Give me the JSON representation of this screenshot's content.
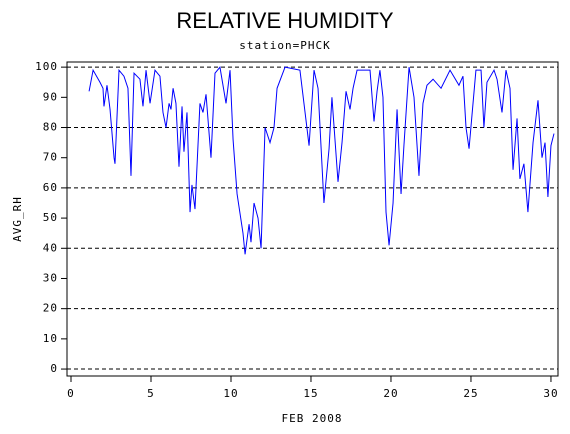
{
  "chart_data": {
    "type": "line",
    "title": "RELATIVE HUMIDITY",
    "subtitle": "station=PHCK",
    "x_label": "FEB 2008",
    "y_label": "AVG_RH",
    "color": "#0000ff",
    "xlim": [
      -0.25,
      30.44
    ],
    "ylim": [
      -2.3,
      101.7
    ],
    "xticks": [
      0,
      5,
      10,
      15,
      20,
      25,
      30
    ],
    "yticks": [
      0,
      10,
      20,
      30,
      40,
      50,
      60,
      70,
      80,
      90,
      100
    ],
    "ygrid": [
      0,
      20,
      40,
      60,
      80,
      100
    ],
    "grid_style": "dashed",
    "x": [
      1.13,
      1.38,
      1.81,
      2.0,
      2.06,
      2.25,
      2.44,
      2.69,
      2.75,
      3.0,
      3.31,
      3.56,
      3.75,
      3.94,
      4.31,
      4.5,
      4.69,
      4.94,
      5.25,
      5.56,
      5.75,
      5.94,
      6.13,
      6.25,
      6.38,
      6.56,
      6.75,
      6.94,
      7.06,
      7.25,
      7.44,
      7.56,
      7.75,
      8.06,
      8.25,
      8.44,
      8.75,
      9.0,
      9.31,
      9.69,
      9.94,
      10.13,
      10.38,
      10.75,
      10.88,
      11.13,
      11.25,
      11.44,
      11.69,
      11.88,
      12.13,
      12.44,
      12.69,
      12.88,
      13.38,
      14.31,
      14.63,
      14.88,
      15.19,
      15.44,
      15.81,
      16.13,
      16.31,
      16.69,
      16.94,
      17.19,
      17.44,
      17.63,
      17.88,
      18.69,
      18.94,
      19.13,
      19.31,
      19.5,
      19.69,
      19.88,
      20.13,
      20.38,
      20.63,
      20.81,
      21.13,
      21.44,
      21.75,
      22.0,
      22.25,
      22.63,
      23.13,
      23.69,
      24.25,
      24.5,
      24.69,
      24.88,
      25.31,
      25.63,
      25.81,
      26.0,
      26.44,
      26.63,
      26.94,
      27.19,
      27.44,
      27.63,
      27.88,
      28.06,
      28.31,
      28.56,
      28.88,
      29.19,
      29.44,
      29.63,
      29.81,
      30.0,
      30.19
    ],
    "values": [
      92,
      99,
      95,
      93,
      87,
      94,
      86,
      70,
      68,
      99,
      97,
      93,
      64,
      98,
      96,
      87,
      99,
      88,
      99,
      97,
      85,
      80,
      88,
      86,
      93,
      88,
      67,
      87,
      72,
      85,
      52,
      61,
      53,
      88,
      85,
      91,
      70,
      98,
      100,
      88,
      99,
      76,
      58,
      45,
      38,
      48,
      42,
      55,
      50,
      40,
      80,
      75,
      80,
      93,
      100,
      99,
      85,
      74,
      99,
      93,
      55,
      73,
      90,
      62,
      75,
      92,
      86,
      93,
      99,
      99,
      82,
      92,
      99,
      90,
      52,
      41,
      55,
      86,
      58,
      74,
      100,
      90,
      64,
      88,
      94,
      96,
      93,
      99,
      94,
      97,
      80,
      73,
      99,
      99,
      80,
      95,
      99,
      96,
      85,
      99,
      93,
      66,
      83,
      63,
      68,
      52,
      75,
      89,
      70,
      75,
      57,
      74,
      78
    ]
  }
}
